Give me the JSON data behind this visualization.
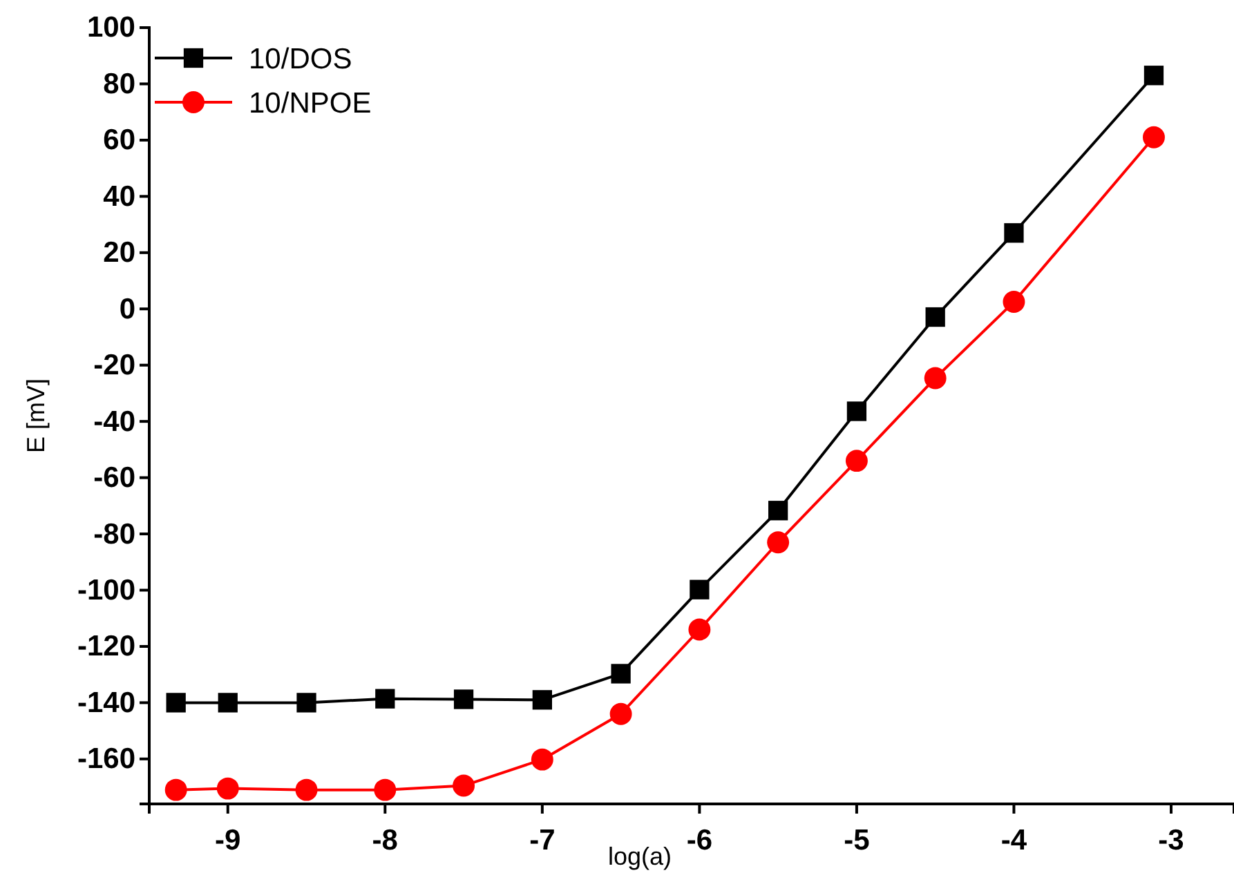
{
  "chart_data": {
    "type": "line",
    "xlabel": "log(a)",
    "ylabel": "E [mV]",
    "xlim": [
      -9.5,
      -2.6
    ],
    "ylim": [
      -176,
      100
    ],
    "xticks": [
      -9,
      -8,
      -7,
      -6,
      -5,
      -4,
      -3
    ],
    "yticks": [
      -160,
      -140,
      -120,
      -100,
      -80,
      -60,
      -40,
      -20,
      0,
      20,
      40,
      60,
      80,
      100
    ],
    "legend": "top left",
    "grid": false,
    "x": [
      -9.33,
      -9,
      -8.5,
      -8,
      -7.5,
      -7,
      -6.5,
      -6,
      -5.5,
      -5,
      -4.5,
      -4,
      -3.11
    ],
    "series": [
      {
        "name": "10/DOS",
        "color": "#000000",
        "marker": "square",
        "values": [
          -140,
          -140,
          -140,
          -138.6,
          -138.8,
          -139,
          -129.7,
          -99.8,
          -71.7,
          -36.4,
          -2.9,
          27,
          83
        ]
      },
      {
        "name": "10/NPOE",
        "color": "#ff0000",
        "marker": "circle",
        "values": [
          -171,
          -170.5,
          -171,
          -171,
          -169.5,
          -160.2,
          -144,
          -114,
          -83,
          -54,
          -24.6,
          2.5,
          61
        ]
      }
    ]
  }
}
